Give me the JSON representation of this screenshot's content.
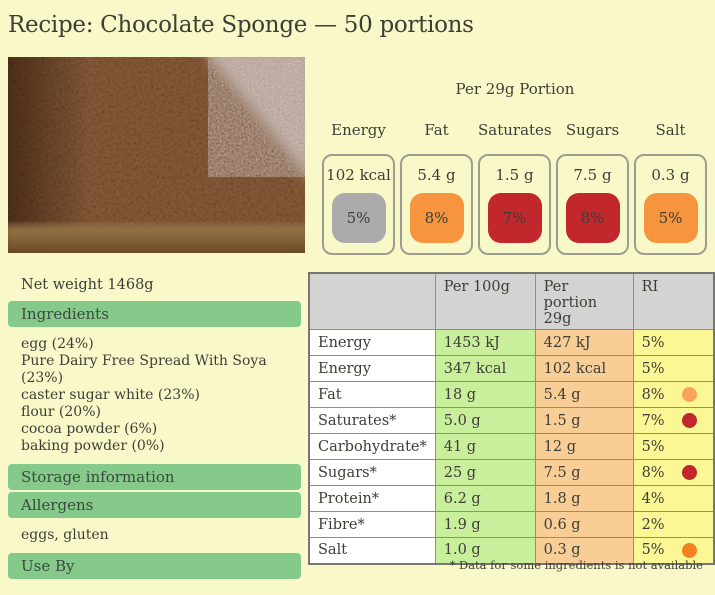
{
  "title": "Recipe: Chocolate Sponge — 50 portions",
  "photo": {
    "description": "close-up of a chocolate sponge cake slice"
  },
  "portion_panel": {
    "heading": "Per 29g Portion",
    "badges": [
      {
        "label": "Energy",
        "value": "102 kcal",
        "ri": "5%",
        "color": "#ababab"
      },
      {
        "label": "Fat",
        "value": "5.4 g",
        "ri": "8%",
        "color": "#f7943e"
      },
      {
        "label": "Saturates",
        "value": "1.5 g",
        "ri": "7%",
        "color": "#c1272d"
      },
      {
        "label": "Sugars",
        "value": "7.5 g",
        "ri": "8%",
        "color": "#c1272d"
      },
      {
        "label": "Salt",
        "value": "0.3 g",
        "ri": "5%",
        "color": "#f7943e"
      }
    ]
  },
  "left_panel": {
    "net_weight": "Net weight 1468g",
    "sections": [
      {
        "header": "Ingredients",
        "lines": [
          "egg (24%)",
          "Pure Dairy Free Spread With Soya (23%)",
          "caster sugar white (23%)",
          "flour (20%)",
          "cocoa powder (6%)",
          "baking powder (0%)"
        ]
      },
      {
        "header": "Storage information",
        "lines": []
      },
      {
        "header": "Allergens",
        "lines": [
          "eggs, gluten"
        ]
      },
      {
        "header": "Use By",
        "lines": []
      }
    ]
  },
  "nutrition_table": {
    "columns": [
      "",
      "Per 100g",
      "Per portion 29g",
      "RI"
    ],
    "rows": [
      {
        "label": "Energy",
        "per100": "1453 kJ",
        "portion": "427 kJ",
        "ri": "5%",
        "dot": null
      },
      {
        "label": "Energy",
        "per100": "347 kcal",
        "portion": "102 kcal",
        "ri": "5%",
        "dot": null
      },
      {
        "label": "Fat",
        "per100": "18 g",
        "portion": "5.4 g",
        "ri": "8%",
        "dot": "#f9a45c"
      },
      {
        "label": "Saturates*",
        "per100": "5.0 g",
        "portion": "1.5 g",
        "ri": "7%",
        "dot": "#c1272d"
      },
      {
        "label": "Carbohydrate*",
        "per100": "41 g",
        "portion": "12 g",
        "ri": "5%",
        "dot": null
      },
      {
        "label": "Sugars*",
        "per100": "25 g",
        "portion": "7.5 g",
        "ri": "8%",
        "dot": "#c1272d"
      },
      {
        "label": "Protein*",
        "per100": "6.2 g",
        "portion": "1.8 g",
        "ri": "4%",
        "dot": null
      },
      {
        "label": "Fibre*",
        "per100": "1.9 g",
        "portion": "0.6 g",
        "ri": "2%",
        "dot": null
      },
      {
        "label": "Salt",
        "per100": "1.0 g",
        "portion": "0.3 g",
        "ri": "5%",
        "dot": "#f58220"
      }
    ],
    "footnote": "* Data for some ingredients is not available"
  },
  "colors": {
    "page_bg": "#f8f8c9",
    "text": "#3e3e36",
    "green_bar": "#85c98b",
    "table_header_bg": "#d3d3d3",
    "cell_green": "#c9ef9c",
    "cell_orange": "#f8ce96",
    "cell_yellow": "#faf794",
    "badge_gray": "#ababab",
    "badge_orange": "#f7943e",
    "badge_red": "#c1272d"
  }
}
